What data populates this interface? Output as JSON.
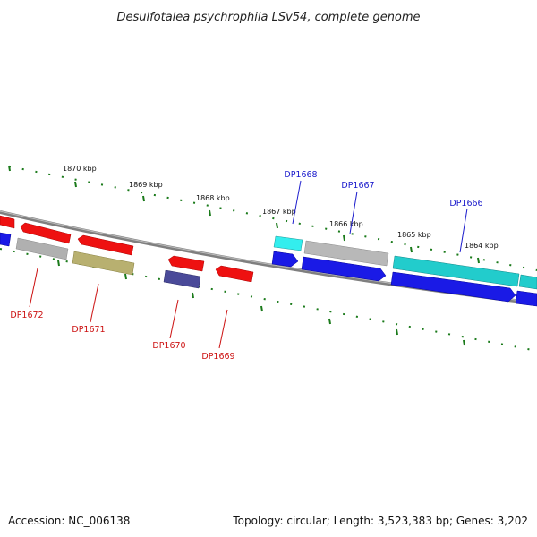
{
  "title": "Desulfotalea psychrophila LSv54, complete genome",
  "footer": {
    "accession": "Accession: NC_006138",
    "topology": "Topology: circular; Length: 3,523,383 bp; Genes: 3,202"
  },
  "scale_labels": [
    "1870 kbp",
    "1869 kbp",
    "1868 kbp",
    "1867 kbp",
    "1866 kbp",
    "1865 kbp",
    "1864 kbp"
  ],
  "forward_gene_labels": [
    "DP1668",
    "DP1667",
    "DP1666"
  ],
  "reverse_gene_labels": [
    "DP1672",
    "DP1671",
    "DP1670",
    "DP1669"
  ],
  "colors": {
    "forward_label": "#1a1acc",
    "reverse_label": "#cc1111",
    "backbone": "#808080",
    "tick": "#1a7a1a",
    "red": "#ee1111",
    "blue": "#1a1ae6",
    "cyan": "#22cccc",
    "light_cyan": "#33eeee",
    "grey": "#b0b0b0",
    "olive": "#b8b070",
    "slate": "#4a4a99"
  }
}
